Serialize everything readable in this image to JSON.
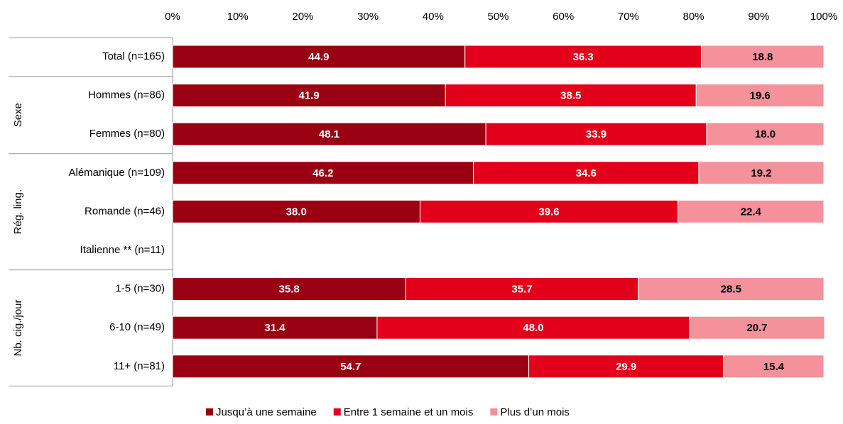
{
  "chart_data": {
    "type": "stacked-barh",
    "categories": [
      "Total (n=165)",
      "Hommes (n=86)",
      "Femmes (n=80)",
      "Alémanique (n=109)",
      "Romande (n=46)",
      "Italienne ** (n=11)",
      "1-5 (n=30)",
      "6-10 (n=49)",
      "11+ (n=81)"
    ],
    "groups": [
      {
        "size": 1
      },
      {
        "name": "Sexe",
        "size": 2
      },
      {
        "name": "Rég. ling.",
        "size": 3
      },
      {
        "name": "Nb. cig./jour",
        "size": 3
      }
    ],
    "series": [
      {
        "name": "Jusqu’à une semaine",
        "color": "#990011",
        "label_color": "#ffffff",
        "values": [
          44.9,
          41.9,
          48.1,
          46.2,
          38.0,
          null,
          35.8,
          31.4,
          54.7
        ],
        "value_labels": [
          "44.9",
          "41.9",
          "48.1",
          "46.2",
          "38.0",
          null,
          "35.8",
          "31.4",
          "54.7"
        ]
      },
      {
        "name": "Entre 1 semaine et un mois",
        "color": "#e2001a",
        "label_color": "#ffffff",
        "values": [
          36.3,
          38.5,
          33.9,
          34.6,
          39.6,
          null,
          35.7,
          48.0,
          29.9
        ],
        "value_labels": [
          "36.3",
          "38.5",
          "33.9",
          "34.6",
          "39.6",
          null,
          "35.7",
          "48.0",
          "29.9"
        ]
      },
      {
        "name": "Plus d’un mois",
        "color": "#f4919b",
        "label_color": "#000000",
        "values": [
          18.8,
          19.6,
          18.0,
          19.2,
          22.4,
          null,
          28.5,
          20.7,
          15.4
        ],
        "value_labels": [
          "18.8",
          "19.6",
          "18.0",
          "19.2",
          "22.4",
          null,
          "28.5",
          "20.7",
          "15.4"
        ]
      }
    ],
    "xlim": [
      0,
      100
    ],
    "xticks": [
      {
        "value": 0,
        "label": "0%"
      },
      {
        "value": 10,
        "label": "10%"
      },
      {
        "value": 20,
        "label": "20%"
      },
      {
        "value": 30,
        "label": "30%"
      },
      {
        "value": 40,
        "label": "40%"
      },
      {
        "value": 50,
        "label": "50%"
      },
      {
        "value": 60,
        "label": "60%"
      },
      {
        "value": 70,
        "label": "70%"
      },
      {
        "value": 80,
        "label": "80%"
      },
      {
        "value": 90,
        "label": "90%"
      },
      {
        "value": 100,
        "label": "100%"
      }
    ],
    "legend": "bottom"
  }
}
